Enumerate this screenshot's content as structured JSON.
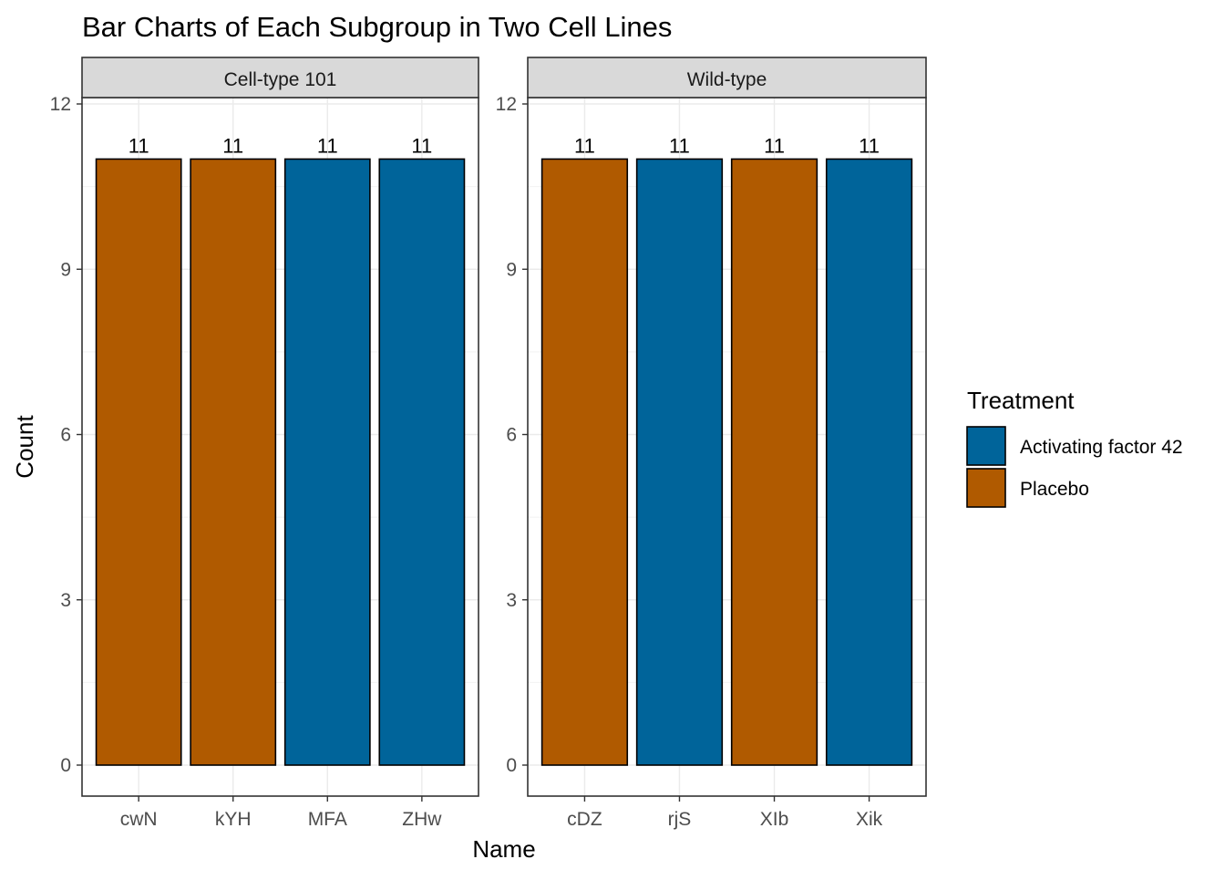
{
  "chart_data": {
    "type": "bar",
    "title": "Bar Charts of Each Subgroup in Two Cell Lines",
    "xlabel": "Name",
    "ylabel": "Count",
    "ylim": [
      0,
      12
    ],
    "yticks": [
      0,
      3,
      6,
      9,
      12
    ],
    "grid": true,
    "legend": {
      "title": "Treatment",
      "position": "right",
      "entries": [
        {
          "label": "Activating factor 42",
          "color": "#00649a"
        },
        {
          "label": "Placebo",
          "color": "#b05a00"
        }
      ]
    },
    "panels": [
      {
        "label": "Cell-type 101",
        "categories": [
          "cwN",
          "kYH",
          "MFA",
          "ZHw"
        ],
        "values": [
          11,
          11,
          11,
          11
        ],
        "groups": [
          "Placebo",
          "Placebo",
          "Activating factor 42",
          "Activating factor 42"
        ],
        "data_labels": [
          "11",
          "11",
          "11",
          "11"
        ]
      },
      {
        "label": "Wild-type",
        "categories": [
          "cDZ",
          "rjS",
          "XIb",
          "Xik"
        ],
        "values": [
          11,
          11,
          11,
          11
        ],
        "groups": [
          "Placebo",
          "Activating factor 42",
          "Placebo",
          "Activating factor 42"
        ],
        "data_labels": [
          "11",
          "11",
          "11",
          "11"
        ]
      }
    ]
  }
}
